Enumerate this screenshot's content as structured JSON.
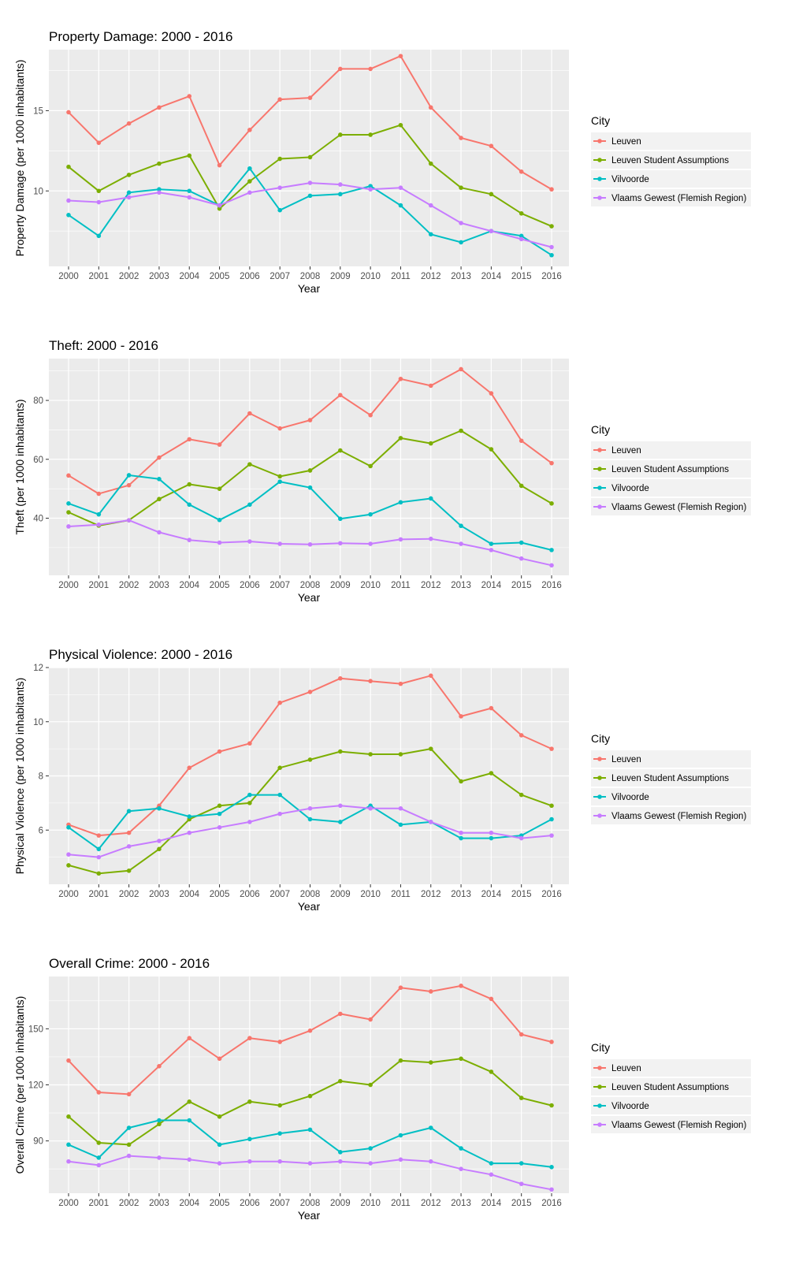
{
  "chart_data": [
    {
      "type": "line",
      "title": "Property Damage: 2000 - 2016",
      "xlabel": "Year",
      "ylabel": "Property Damage (per 1000 inhabitants)",
      "ylim": [
        5.3,
        18.8
      ],
      "yticks": [
        10,
        15
      ],
      "x": [
        2000,
        2001,
        2002,
        2003,
        2004,
        2005,
        2006,
        2007,
        2008,
        2009,
        2010,
        2011,
        2012,
        2013,
        2014,
        2015,
        2016
      ],
      "legend_title": "City",
      "legend_position": "right",
      "series": [
        {
          "name": "Leuven",
          "color": "#F8766D",
          "values": [
            14.9,
            13.0,
            14.2,
            15.2,
            15.9,
            11.6,
            13.8,
            15.7,
            15.8,
            17.6,
            17.6,
            18.4,
            15.2,
            13.3,
            12.8,
            11.2,
            10.1
          ]
        },
        {
          "name": "Leuven Student Assumptions",
          "color": "#7CAE00",
          "values": [
            11.5,
            10.0,
            11.0,
            11.7,
            12.2,
            8.9,
            10.6,
            12.0,
            12.1,
            13.5,
            13.5,
            14.1,
            11.7,
            10.2,
            9.8,
            8.6,
            7.8
          ]
        },
        {
          "name": "Vilvoorde",
          "color": "#00BFC4",
          "values": [
            8.5,
            7.2,
            9.9,
            10.1,
            10.0,
            9.1,
            11.4,
            8.8,
            9.7,
            9.8,
            10.3,
            9.1,
            7.3,
            6.8,
            7.5,
            7.2,
            6.0
          ]
        },
        {
          "name": "Vlaams Gewest (Flemish Region)",
          "color": "#C77CFF",
          "values": [
            9.4,
            9.3,
            9.6,
            9.9,
            9.6,
            9.1,
            9.9,
            10.2,
            10.5,
            10.4,
            10.1,
            10.2,
            9.1,
            8.0,
            7.5,
            7.0,
            6.5
          ]
        }
      ]
    },
    {
      "type": "line",
      "title": "Theft: 2000 - 2016",
      "xlabel": "Year",
      "ylabel": "Theft (per 1000 inhabitants)",
      "ylim": [
        20.6,
        94.2
      ],
      "yticks": [
        40,
        60,
        80
      ],
      "x": [
        2000,
        2001,
        2002,
        2003,
        2004,
        2005,
        2006,
        2007,
        2008,
        2009,
        2010,
        2011,
        2012,
        2013,
        2014,
        2015,
        2016
      ],
      "legend_title": "City",
      "legend_position": "right",
      "series": [
        {
          "name": "Leuven",
          "color": "#F8766D",
          "values": [
            54.5,
            48.3,
            51.2,
            60.6,
            66.8,
            65.0,
            75.6,
            70.5,
            73.3,
            81.8,
            75.0,
            87.3,
            85.0,
            90.6,
            82.4,
            66.3,
            58.7
          ]
        },
        {
          "name": "Leuven Student Assumptions",
          "color": "#7CAE00",
          "values": [
            42.0,
            37.5,
            39.3,
            46.5,
            51.5,
            50.0,
            58.3,
            54.2,
            56.2,
            63.0,
            57.7,
            67.2,
            65.4,
            69.7,
            63.4,
            51.0,
            45.0
          ]
        },
        {
          "name": "Vilvoorde",
          "color": "#00BFC4",
          "values": [
            45.0,
            41.3,
            54.6,
            53.3,
            44.6,
            39.4,
            44.6,
            52.4,
            50.4,
            39.8,
            41.3,
            45.4,
            46.7,
            37.4,
            31.3,
            31.7,
            29.2
          ]
        },
        {
          "name": "Vlaams Gewest (Flemish Region)",
          "color": "#C77CFF",
          "values": [
            37.2,
            37.8,
            39.3,
            35.2,
            32.6,
            31.7,
            32.1,
            31.3,
            31.1,
            31.5,
            31.3,
            32.8,
            33.0,
            31.3,
            29.2,
            26.3,
            24.0
          ]
        }
      ]
    },
    {
      "type": "line",
      "title": "Physical Violence: 2000 - 2016",
      "xlabel": "Year",
      "ylabel": "Physical Violence (per 1000 inhabitants)",
      "ylim": [
        4.0,
        12.0
      ],
      "yticks": [
        6,
        8,
        10,
        12
      ],
      "x": [
        2000,
        2001,
        2002,
        2003,
        2004,
        2005,
        2006,
        2007,
        2008,
        2009,
        2010,
        2011,
        2012,
        2013,
        2014,
        2015,
        2016
      ],
      "legend_title": "City",
      "legend_position": "right",
      "series": [
        {
          "name": "Leuven",
          "color": "#F8766D",
          "values": [
            6.2,
            5.8,
            5.9,
            6.9,
            8.3,
            8.9,
            9.2,
            10.7,
            11.1,
            11.6,
            11.5,
            11.4,
            11.7,
            10.2,
            10.5,
            9.5,
            9.0
          ]
        },
        {
          "name": "Leuven Student Assumptions",
          "color": "#7CAE00",
          "values": [
            4.7,
            4.4,
            4.5,
            5.3,
            6.4,
            6.9,
            7.0,
            8.3,
            8.6,
            8.9,
            8.8,
            8.8,
            9.0,
            7.8,
            8.1,
            7.3,
            6.9
          ]
        },
        {
          "name": "Vilvoorde",
          "color": "#00BFC4",
          "values": [
            6.1,
            5.3,
            6.7,
            6.8,
            6.5,
            6.6,
            7.3,
            7.3,
            6.4,
            6.3,
            6.9,
            6.2,
            6.3,
            5.7,
            5.7,
            5.8,
            6.4
          ]
        },
        {
          "name": "Vlaams Gewest (Flemish Region)",
          "color": "#C77CFF",
          "values": [
            5.1,
            5.0,
            5.4,
            5.6,
            5.9,
            6.1,
            6.3,
            6.6,
            6.8,
            6.9,
            6.8,
            6.8,
            6.3,
            5.9,
            5.9,
            5.7,
            5.8
          ]
        }
      ]
    },
    {
      "type": "line",
      "title": "Overall Crime: 2000 - 2016",
      "xlabel": "Year",
      "ylabel": "Overall Crime (per 1000 inhabitants)",
      "ylim": [
        62,
        178
      ],
      "yticks": [
        90,
        120,
        150
      ],
      "x": [
        2000,
        2001,
        2002,
        2003,
        2004,
        2005,
        2006,
        2007,
        2008,
        2009,
        2010,
        2011,
        2012,
        2013,
        2014,
        2015,
        2016
      ],
      "legend_title": "City",
      "legend_position": "right",
      "series": [
        {
          "name": "Leuven",
          "color": "#F8766D",
          "values": [
            133,
            116,
            115,
            130,
            145,
            134,
            145,
            143,
            149,
            158,
            155,
            172,
            170,
            173,
            166,
            147,
            143
          ]
        },
        {
          "name": "Leuven Student Assumptions",
          "color": "#7CAE00",
          "values": [
            103,
            89,
            88,
            99,
            111,
            103,
            111,
            109,
            114,
            122,
            120,
            133,
            132,
            134,
            127,
            113,
            109
          ]
        },
        {
          "name": "Vilvoorde",
          "color": "#00BFC4",
          "values": [
            88,
            81,
            97,
            101,
            101,
            88,
            91,
            94,
            96,
            84,
            86,
            93,
            97,
            86,
            78,
            78,
            76
          ]
        },
        {
          "name": "Vlaams Gewest (Flemish Region)",
          "color": "#C77CFF",
          "values": [
            79,
            77,
            82,
            81,
            80,
            78,
            79,
            79,
            78,
            79,
            78,
            80,
            79,
            75,
            72,
            67,
            64
          ]
        }
      ]
    }
  ]
}
